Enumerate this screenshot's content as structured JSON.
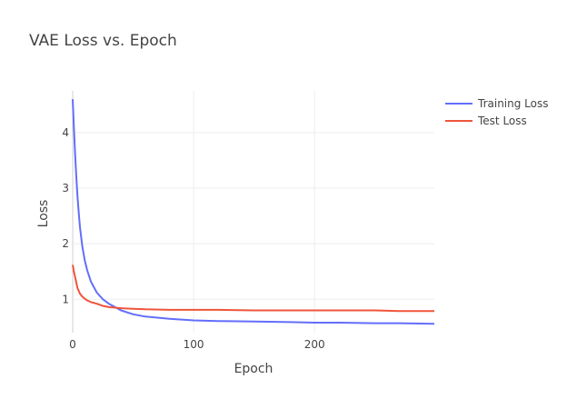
{
  "chart_data": {
    "type": "line",
    "title": "VAE Loss vs. Epoch",
    "xlabel": "Epoch",
    "ylabel": "Loss",
    "xlim": [
      0,
      299
    ],
    "ylim": [
      0.4,
      4.75
    ],
    "xticks": [
      0,
      100,
      200
    ],
    "yticks": [
      1,
      2,
      3,
      4
    ],
    "grid": true,
    "legend_position": "top-right",
    "x": [
      0,
      1,
      2,
      3,
      4,
      5,
      6,
      8,
      10,
      12,
      15,
      20,
      25,
      30,
      40,
      50,
      60,
      80,
      100,
      120,
      150,
      180,
      200,
      220,
      250,
      270,
      299
    ],
    "series": [
      {
        "name": "Training Loss",
        "color": "#636efa",
        "values": [
          4.6,
          4.1,
          3.6,
          3.2,
          2.85,
          2.55,
          2.3,
          1.95,
          1.7,
          1.52,
          1.32,
          1.12,
          1.0,
          0.92,
          0.8,
          0.73,
          0.69,
          0.65,
          0.62,
          0.61,
          0.6,
          0.59,
          0.58,
          0.58,
          0.57,
          0.57,
          0.56
        ]
      },
      {
        "name": "Test Loss",
        "color": "#ef553b",
        "values": [
          1.62,
          1.5,
          1.4,
          1.3,
          1.2,
          1.15,
          1.1,
          1.05,
          1.01,
          0.98,
          0.95,
          0.92,
          0.88,
          0.86,
          0.84,
          0.83,
          0.82,
          0.81,
          0.81,
          0.81,
          0.8,
          0.8,
          0.8,
          0.8,
          0.8,
          0.79,
          0.79
        ]
      }
    ]
  }
}
